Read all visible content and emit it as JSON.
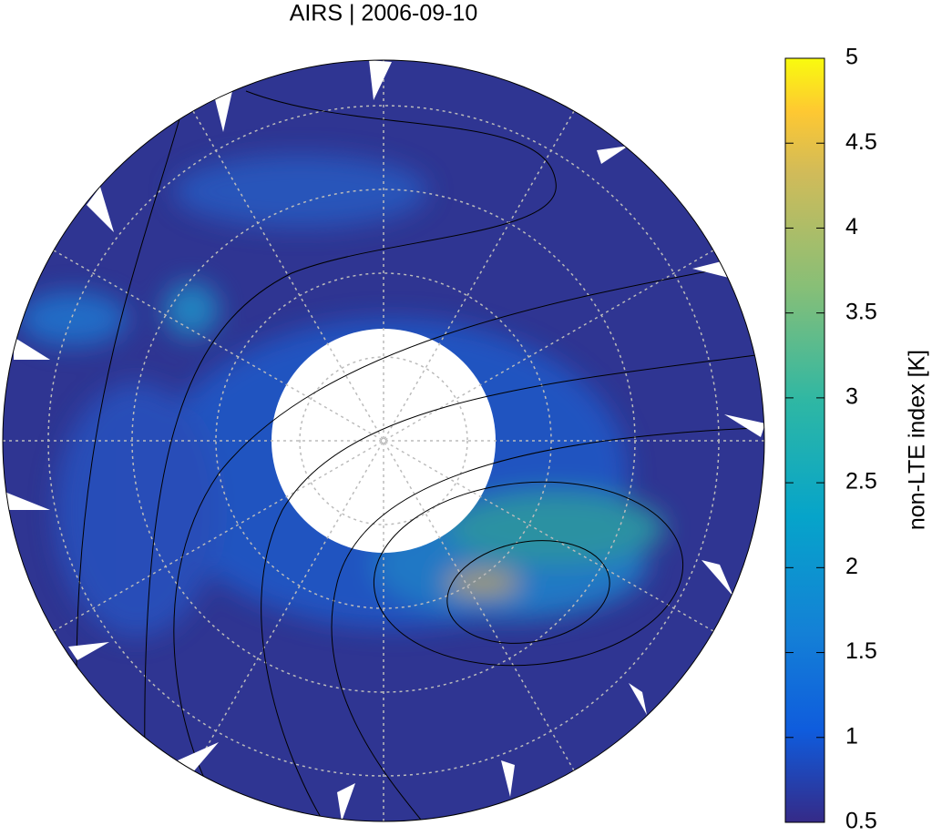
{
  "title": "AIRS | 2006-09-10",
  "colorbar": {
    "label": "non-LTE index [K]",
    "lim": [
      0.5,
      5
    ],
    "ticks": [
      0.5,
      1,
      1.5,
      2,
      2.5,
      3,
      3.5,
      4,
      4.5,
      5
    ]
  }
}
